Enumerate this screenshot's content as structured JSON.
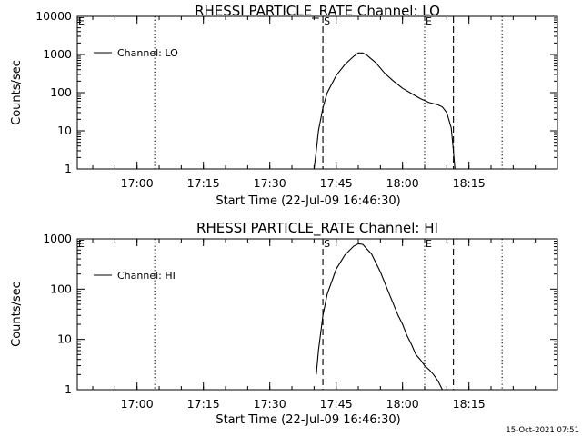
{
  "timestamp": "15-Oct-2021 07:51",
  "chart_data": [
    {
      "type": "line",
      "title": "RHESSI PARTICLE_RATE Channel: LO",
      "xlabel": "Start Time (22-Jul-09 16:46:30)",
      "ylabel": "Counts/sec",
      "y_scale": "log",
      "x_ticks": [
        "17:00",
        "17:15",
        "17:30",
        "17:45",
        "18:00",
        "18:15"
      ],
      "y_ticks": [
        "1",
        "10",
        "100",
        "1000",
        "10000"
      ],
      "ylim": [
        1,
        10000
      ],
      "xlim": [
        "16:46:30",
        "18:35:00"
      ],
      "grid": false,
      "legend_position": "top-left",
      "markers": [
        {
          "label": "E",
          "time": "16:46:30",
          "style": "none"
        },
        {
          "label": "S",
          "time": "17:42:00",
          "style": "dashed"
        },
        {
          "label": "E",
          "time": "18:05:00",
          "style": "dotted"
        }
      ],
      "vlines": [
        {
          "time": "17:04:00",
          "style": "dotted"
        },
        {
          "time": "17:42:00",
          "style": "dashed"
        },
        {
          "time": "18:05:00",
          "style": "dotted"
        },
        {
          "time": "18:11:30",
          "style": "dashed"
        },
        {
          "time": "18:22:30",
          "style": "dotted"
        }
      ],
      "series": [
        {
          "name": "Channel: LO",
          "points": [
            [
              "17:40:00",
              1
            ],
            [
              "17:40:30",
              3
            ],
            [
              "17:41:00",
              10
            ],
            [
              "17:42:00",
              40
            ],
            [
              "17:43:00",
              100
            ],
            [
              "17:45:00",
              280
            ],
            [
              "17:47:00",
              550
            ],
            [
              "17:49:00",
              900
            ],
            [
              "17:50:00",
              1100
            ],
            [
              "17:51:00",
              1100
            ],
            [
              "17:52:00",
              950
            ],
            [
              "17:54:00",
              600
            ],
            [
              "17:56:00",
              320
            ],
            [
              "17:58:00",
              200
            ],
            [
              "18:00:00",
              130
            ],
            [
              "18:02:00",
              95
            ],
            [
              "18:04:00",
              70
            ],
            [
              "18:06:00",
              55
            ],
            [
              "18:08:00",
              48
            ],
            [
              "18:09:00",
              42
            ],
            [
              "18:10:00",
              30
            ],
            [
              "18:11:00",
              12
            ],
            [
              "18:11:30",
              3
            ],
            [
              "18:11:50",
              1
            ]
          ]
        }
      ]
    },
    {
      "type": "line",
      "title": "RHESSI PARTICLE_RATE Channel: HI",
      "xlabel": "Start Time (22-Jul-09 16:46:30)",
      "ylabel": "Counts/sec",
      "y_scale": "log",
      "x_ticks": [
        "17:00",
        "17:15",
        "17:30",
        "17:45",
        "18:00",
        "18:15"
      ],
      "y_ticks": [
        "1",
        "10",
        "100",
        "1000"
      ],
      "ylim": [
        1,
        1000
      ],
      "xlim": [
        "16:46:30",
        "18:35:00"
      ],
      "grid": false,
      "legend_position": "top-left",
      "markers": [
        {
          "label": "E",
          "time": "16:46:30",
          "style": "none"
        },
        {
          "label": "S",
          "time": "17:42:00",
          "style": "dashed"
        },
        {
          "label": "E",
          "time": "18:05:00",
          "style": "dotted"
        }
      ],
      "vlines": [
        {
          "time": "17:04:00",
          "style": "dotted"
        },
        {
          "time": "17:42:00",
          "style": "dashed"
        },
        {
          "time": "18:05:00",
          "style": "dotted"
        },
        {
          "time": "18:11:30",
          "style": "dashed"
        },
        {
          "time": "18:22:30",
          "style": "dotted"
        }
      ],
      "series": [
        {
          "name": "Channel: HI",
          "points": [
            [
              "17:40:30",
              2
            ],
            [
              "17:41:00",
              6
            ],
            [
              "17:42:00",
              30
            ],
            [
              "17:43:00",
              80
            ],
            [
              "17:45:00",
              250
            ],
            [
              "17:47:00",
              480
            ],
            [
              "17:49:00",
              720
            ],
            [
              "17:50:00",
              800
            ],
            [
              "17:51:00",
              780
            ],
            [
              "17:53:00",
              500
            ],
            [
              "17:55:00",
              220
            ],
            [
              "17:57:00",
              80
            ],
            [
              "17:59:00",
              30
            ],
            [
              "18:00:00",
              20
            ],
            [
              "18:01:00",
              12
            ],
            [
              "18:02:00",
              8
            ],
            [
              "18:03:00",
              5
            ],
            [
              "18:04:00",
              4
            ],
            [
              "18:05:00",
              3
            ],
            [
              "18:06:00",
              2.5
            ],
            [
              "18:07:00",
              2
            ],
            [
              "18:08:00",
              1.5
            ],
            [
              "18:09:00",
              1
            ]
          ]
        }
      ]
    }
  ]
}
